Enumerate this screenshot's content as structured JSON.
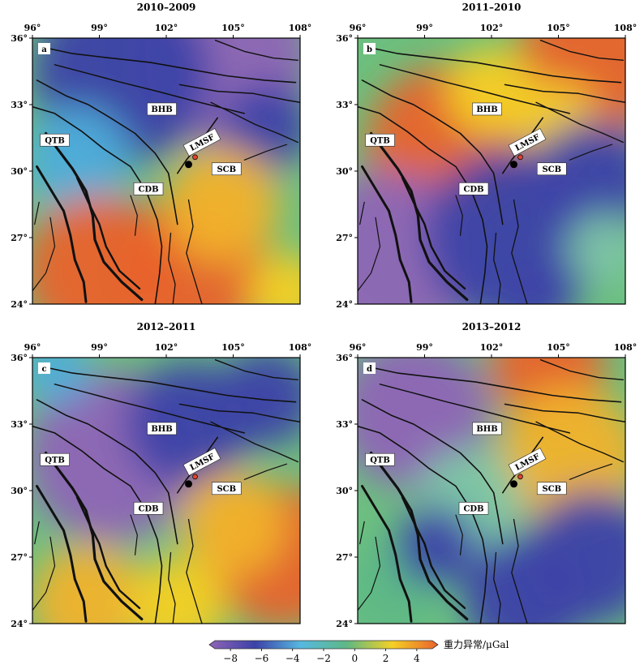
{
  "panels": [
    {
      "id": "a",
      "title": "2010–2009",
      "blobs": [
        {
          "lon": 104.5,
          "lat": 35.2,
          "r": 4.0,
          "c": "#8e64b6"
        },
        {
          "lon": 100.0,
          "lat": 34.3,
          "r": 4.0,
          "c": "#3c42a8"
        },
        {
          "lon": 106.5,
          "lat": 32.0,
          "r": 2.0,
          "c": "#3c42a8"
        },
        {
          "lon": 98.0,
          "lat": 30.5,
          "r": 2.4,
          "c": "#4eaedb"
        },
        {
          "lon": 99.0,
          "lat": 25.5,
          "r": 3.4,
          "c": "#e9622c"
        },
        {
          "lon": 103.2,
          "lat": 25.5,
          "r": 3.4,
          "c": "#e9622c"
        },
        {
          "lon": 104.5,
          "lat": 28.5,
          "r": 2.6,
          "c": "#f1b22a"
        },
        {
          "lon": 107.5,
          "lat": 24.5,
          "r": 1.8,
          "c": "#f4d025"
        }
      ]
    },
    {
      "id": "b",
      "title": "2011–2010",
      "blobs": [
        {
          "lon": 106.5,
          "lat": 35.0,
          "r": 3.4,
          "c": "#e9622c"
        },
        {
          "lon": 100.0,
          "lat": 31.2,
          "r": 3.6,
          "c": "#e9622c"
        },
        {
          "lon": 102.0,
          "lat": 33.6,
          "r": 2.0,
          "c": "#f4d025"
        },
        {
          "lon": 105.0,
          "lat": 32.2,
          "r": 1.8,
          "c": "#f4d025"
        },
        {
          "lon": 97.5,
          "lat": 26.0,
          "r": 4.0,
          "c": "#8e64b6"
        },
        {
          "lon": 103.0,
          "lat": 27.0,
          "r": 4.0,
          "c": "#3c42a8"
        },
        {
          "lon": 106.5,
          "lat": 29.5,
          "r": 2.8,
          "c": "#3c42a8"
        },
        {
          "lon": 107.0,
          "lat": 26.5,
          "r": 1.6,
          "c": "#7ec6a6"
        },
        {
          "lon": 104.0,
          "lat": 24.3,
          "r": 1.6,
          "c": "#3c42a8"
        }
      ]
    },
    {
      "id": "c",
      "title": "2012–2011",
      "blobs": [
        {
          "lon": 99.5,
          "lat": 31.5,
          "r": 3.8,
          "c": "#8e64b6"
        },
        {
          "lon": 103.0,
          "lat": 33.0,
          "r": 2.8,
          "c": "#3c42a8"
        },
        {
          "lon": 106.5,
          "lat": 34.2,
          "r": 2.2,
          "c": "#3c42a8"
        },
        {
          "lon": 107.2,
          "lat": 27.0,
          "r": 3.2,
          "c": "#e9622c"
        },
        {
          "lon": 105.0,
          "lat": 28.5,
          "r": 2.4,
          "c": "#f1b22a"
        },
        {
          "lon": 98.5,
          "lat": 25.0,
          "r": 2.6,
          "c": "#f1b22a"
        },
        {
          "lon": 102.5,
          "lat": 24.8,
          "r": 2.2,
          "c": "#f4d025"
        },
        {
          "lon": 97.0,
          "lat": 35.5,
          "r": 1.6,
          "c": "#4eaedb"
        }
      ]
    },
    {
      "id": "d",
      "title": "2013–2012",
      "blobs": [
        {
          "lon": 104.5,
          "lat": 35.6,
          "r": 2.6,
          "c": "#e9622c"
        },
        {
          "lon": 98.5,
          "lat": 33.5,
          "r": 3.4,
          "c": "#8e64b6"
        },
        {
          "lon": 105.5,
          "lat": 31.5,
          "r": 3.2,
          "c": "#f1b22a"
        },
        {
          "lon": 101.0,
          "lat": 29.5,
          "r": 2.4,
          "c": "#7ec6a6"
        },
        {
          "lon": 106.5,
          "lat": 27.0,
          "r": 3.0,
          "c": "#3c42a8"
        },
        {
          "lon": 103.5,
          "lat": 25.2,
          "r": 2.8,
          "c": "#3c42a8"
        },
        {
          "lon": 97.5,
          "lat": 25.5,
          "r": 2.2,
          "c": "#5eb885"
        },
        {
          "lon": 99.5,
          "lat": 27.5,
          "r": 1.8,
          "c": "#3c42a8"
        }
      ]
    }
  ],
  "axes": {
    "lon_ticks": [
      96,
      99,
      102,
      105,
      108
    ],
    "lat_ticks": [
      24,
      27,
      30,
      33,
      36
    ],
    "degree_symbol": "°"
  },
  "labels": [
    {
      "text": "BHB",
      "lon": 101.8,
      "lat": 32.8,
      "rot": 0
    },
    {
      "text": "QTB",
      "lon": 97.0,
      "lat": 31.4,
      "rot": 0
    },
    {
      "text": "CDB",
      "lon": 101.2,
      "lat": 29.2,
      "rot": 0
    },
    {
      "text": "SCB",
      "lon": 104.7,
      "lat": 30.1,
      "rot": 0
    },
    {
      "text": "LMSF",
      "lon": 103.6,
      "lat": 31.3,
      "rot": -28
    }
  ],
  "epicenter": {
    "lon": 103.0,
    "lat": 30.3
  },
  "colorbar": {
    "title": "重力异常/μGal",
    "range": [
      -9,
      5
    ],
    "ticks": [
      -8,
      -6,
      -4,
      -2,
      0,
      2,
      4
    ],
    "stops": [
      "#8e64b6",
      "#3c42a8",
      "#56b8e0",
      "#5eb885",
      "#f4d025",
      "#e9622c"
    ]
  }
}
